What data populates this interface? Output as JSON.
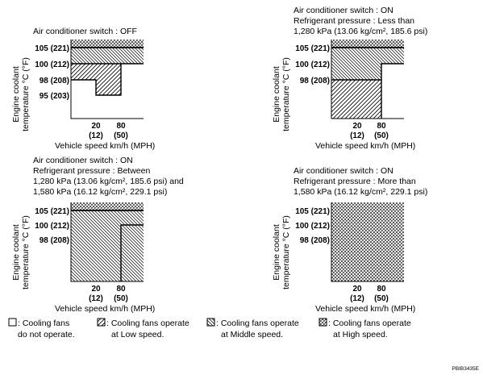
{
  "panels": [
    {
      "id": "ac-off",
      "header": [
        "Air conditioner switch : OFF"
      ],
      "y_ticks": [
        "105 (221)",
        "100 (212)",
        "98 (208)",
        "95 (203)"
      ]
    },
    {
      "id": "ac-on-low-pressure",
      "header": [
        "Air conditioner switch : ON",
        "Refrigerant pressure : Less than",
        "1,280 kPa (13.06 kg/cm², 185.6 psi)"
      ],
      "y_ticks": [
        "105 (221)",
        "100 (212)",
        "98 (208)"
      ]
    },
    {
      "id": "ac-on-mid-pressure",
      "header": [
        "Air conditioner switch : ON",
        "Refrigerant pressure : Between",
        "1,280 kPa (13.06 kg/cm², 185.6 psi) and",
        "1,580 kPa (16.12 kg/cm², 229.1 psi)"
      ],
      "y_ticks": [
        "105 (221)",
        "100 (212)",
        "98 (208)"
      ]
    },
    {
      "id": "ac-on-high-pressure",
      "header": [
        "Air conditioner switch : ON",
        "Refrigerant pressure : More than",
        "1,580 kPa (16.12 kg/cm², 229.1 psi)"
      ],
      "y_ticks": [
        "105 (221)",
        "100 (212)",
        "98 (208)"
      ]
    }
  ],
  "axis": {
    "y_label_1": "Engine coolant",
    "y_label_2": "temperature °C (°F)",
    "x_label": "Vehicle speed km/h (MPH)",
    "x_ticks_kmh": [
      "20",
      "80"
    ],
    "x_ticks_mph": [
      "(12)",
      "(50)"
    ]
  },
  "legend": [
    {
      "line1": ": Cooling fans",
      "line2": "do not operate.",
      "pattern": "none"
    },
    {
      "line1": ": Cooling fans operate",
      "line2": "at Low speed.",
      "pattern": "low"
    },
    {
      "line1": ": Cooling fans operate",
      "line2": "at Middle speed.",
      "pattern": "middle"
    },
    {
      "line1": ": Cooling fans operate",
      "line2": "at High speed.",
      "pattern": "high"
    }
  ],
  "figure_code": "PBIB3435E"
}
